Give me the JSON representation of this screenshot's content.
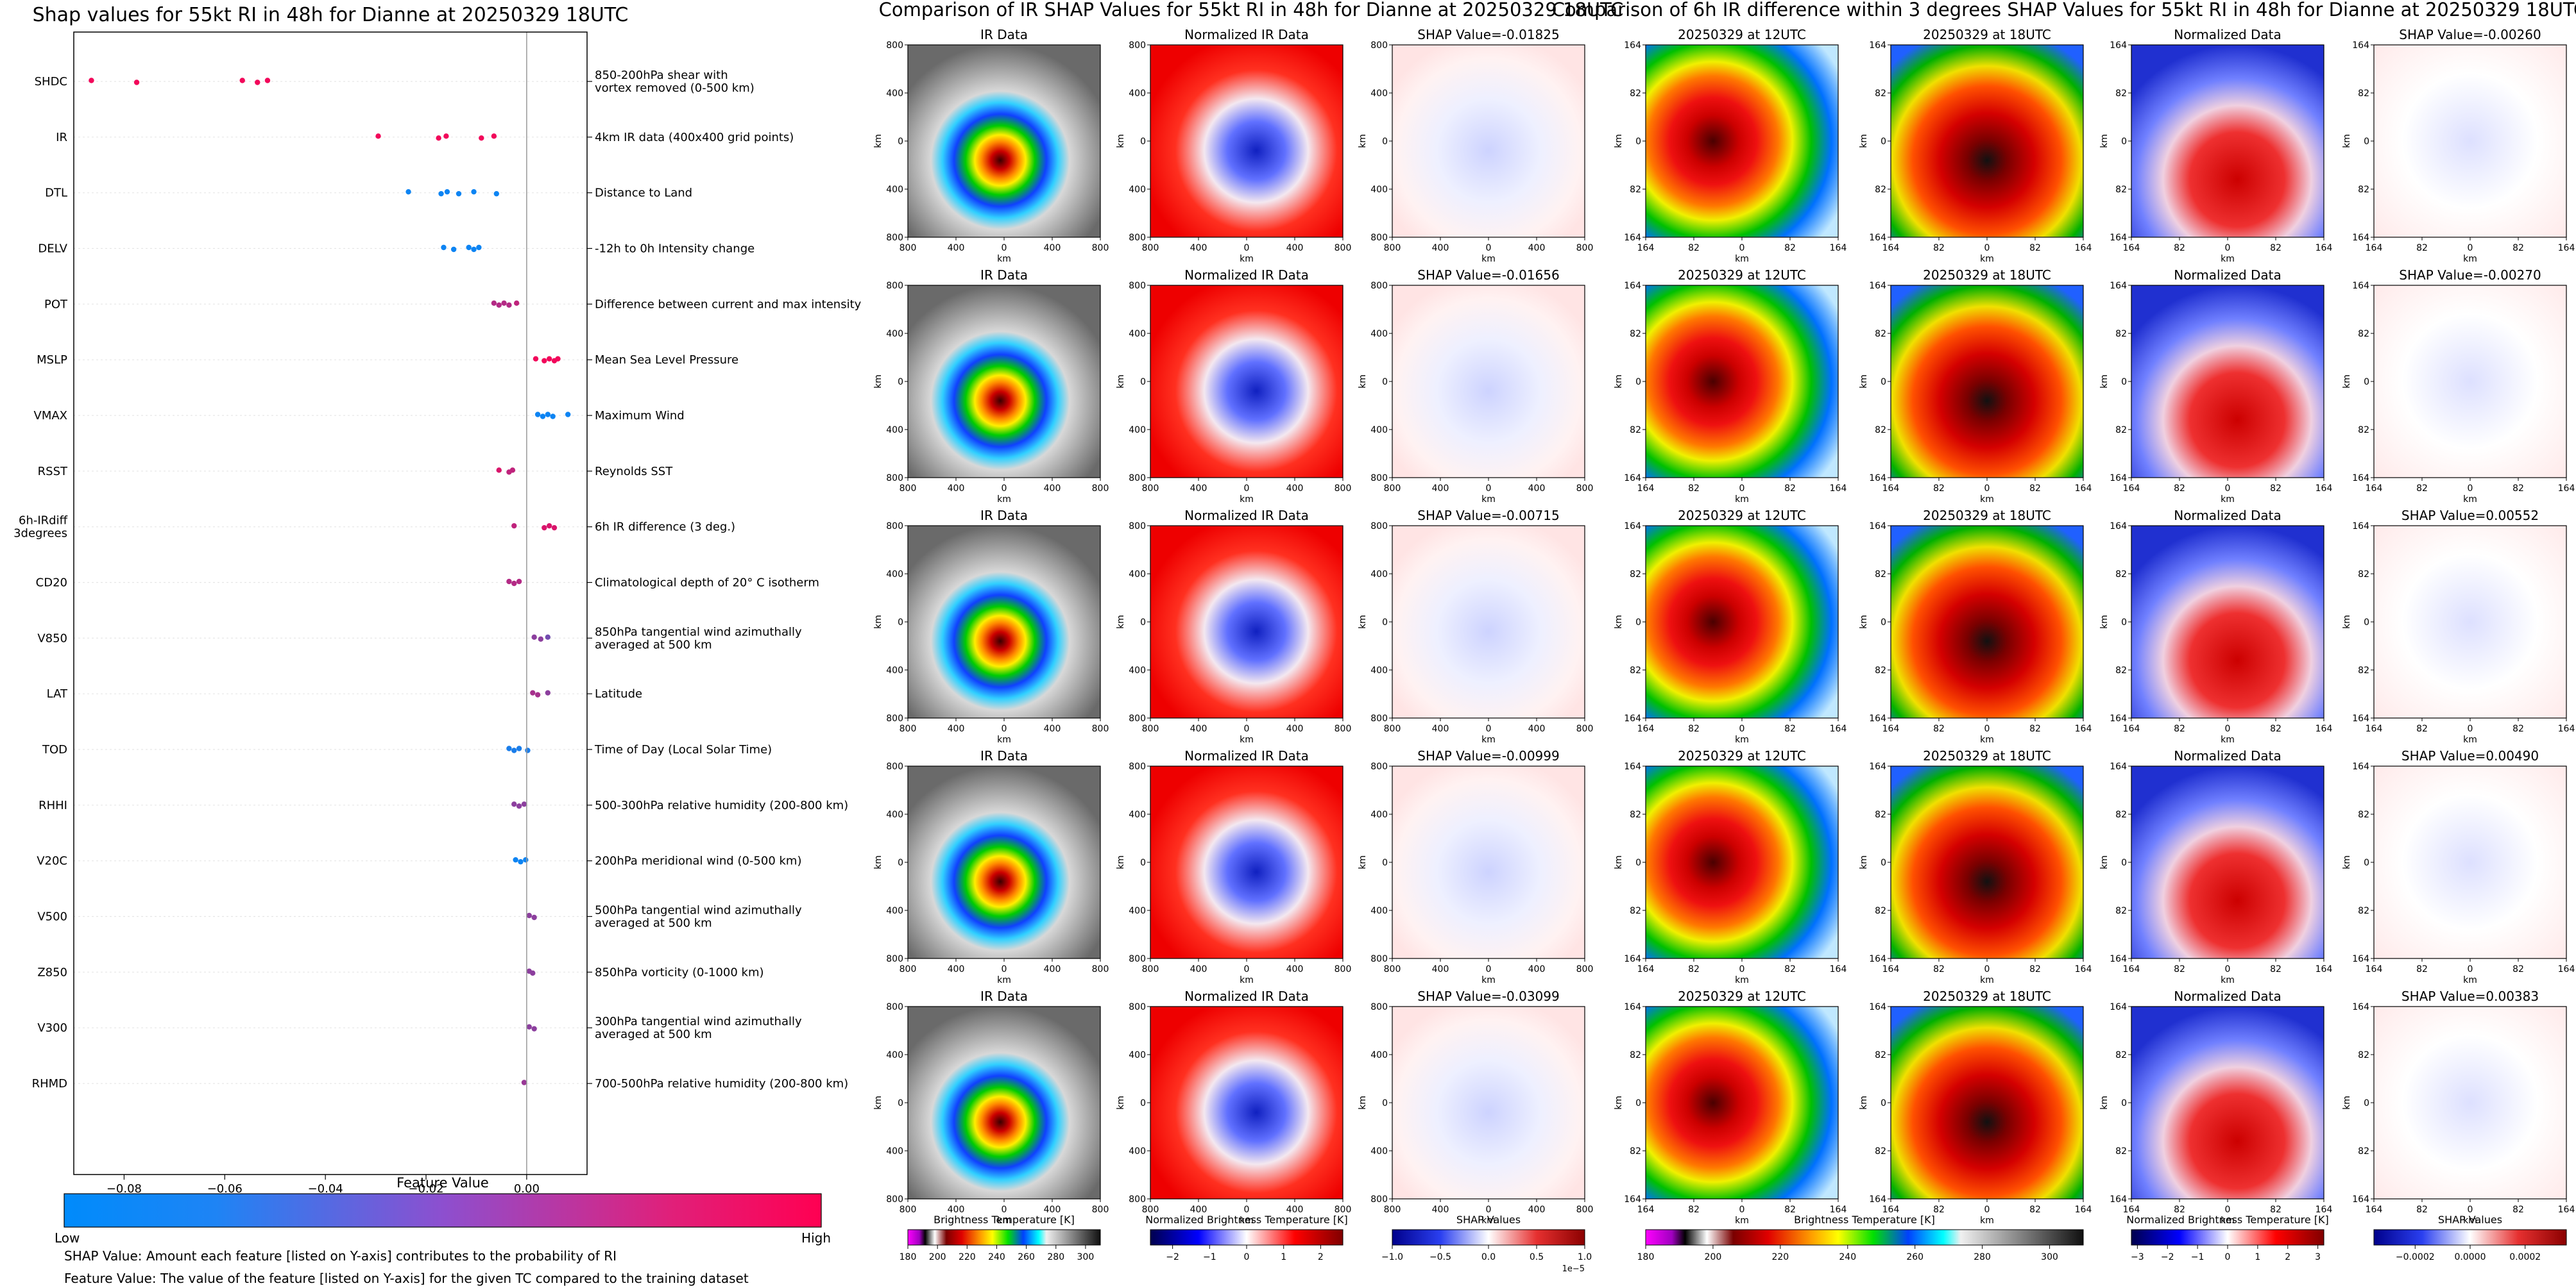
{
  "chart_data": [
    {
      "type": "scatter",
      "title": "Shap values for 55kt RI in 48h for Dianne at 20250329 18UTC",
      "xlabel": "SHAP Value",
      "xlim": [
        -0.09,
        0.012
      ],
      "x_ticks": [
        -0.08,
        -0.06,
        -0.04,
        -0.02,
        0.0
      ],
      "x_tick_labels": [
        "−0.08",
        "−0.06",
        "−0.04",
        "−0.02",
        "0.00"
      ],
      "features": [
        {
          "label": "SHDC",
          "description": [
            "850-200hPa shear with",
            "vortex removed (0-500 km)"
          ],
          "points": [
            [
              -0.0865,
              0.95
            ],
            [
              -0.0775,
              0.95
            ],
            [
              -0.0565,
              0.95
            ],
            [
              -0.0535,
              0.95
            ],
            [
              -0.0515,
              0.95
            ]
          ]
        },
        {
          "label": "IR",
          "description": [
            "4km IR data (400x400 grid points)"
          ],
          "points": [
            [
              -0.0295,
              0.95
            ],
            [
              -0.0175,
              0.95
            ],
            [
              -0.016,
              0.95
            ],
            [
              -0.009,
              0.95
            ],
            [
              -0.0065,
              0.95
            ]
          ]
        },
        {
          "label": "DTL",
          "description": [
            "Distance to Land"
          ],
          "points": [
            [
              -0.0235,
              0.05
            ],
            [
              -0.017,
              0.05
            ],
            [
              -0.0158,
              0.05
            ],
            [
              -0.0135,
              0.05
            ],
            [
              -0.0105,
              0.05
            ],
            [
              -0.006,
              0.05
            ]
          ]
        },
        {
          "label": "DELV",
          "description": [
            "-12h to 0h Intensity change"
          ],
          "points": [
            [
              -0.0165,
              0.05
            ],
            [
              -0.0145,
              0.05
            ],
            [
              -0.0115,
              0.05
            ],
            [
              -0.0105,
              0.05
            ],
            [
              -0.0095,
              0.05
            ]
          ]
        },
        {
          "label": "POT",
          "description": [
            "Difference between current and max intensity"
          ],
          "points": [
            [
              -0.0065,
              0.7
            ],
            [
              -0.0055,
              0.7
            ],
            [
              -0.0045,
              0.7
            ],
            [
              -0.0035,
              0.7
            ],
            [
              -0.002,
              0.75
            ]
          ]
        },
        {
          "label": "MSLP",
          "description": [
            "Mean Sea Level Pressure"
          ],
          "points": [
            [
              0.0018,
              0.95
            ],
            [
              0.0035,
              0.95
            ],
            [
              0.0045,
              0.95
            ],
            [
              0.0055,
              0.95
            ],
            [
              0.0062,
              0.95
            ]
          ]
        },
        {
          "label": "VMAX",
          "description": [
            "Maximum Wind"
          ],
          "points": [
            [
              0.0022,
              0.05
            ],
            [
              0.0032,
              0.05
            ],
            [
              0.0042,
              0.05
            ],
            [
              0.0052,
              0.05
            ],
            [
              0.0082,
              0.05
            ]
          ]
        },
        {
          "label": "RSST",
          "description": [
            "Reynolds SST"
          ],
          "points": [
            [
              -0.0055,
              0.85
            ],
            [
              -0.0035,
              0.75
            ],
            [
              -0.0028,
              0.75
            ]
          ]
        },
        {
          "label": "6h-IRdiff 3degrees",
          "description": [
            "6h IR difference (3 deg.)"
          ],
          "points": [
            [
              -0.0025,
              0.75
            ],
            [
              0.0035,
              0.85
            ],
            [
              0.0045,
              0.85
            ],
            [
              0.0055,
              0.85
            ]
          ]
        },
        {
          "label": "CD20",
          "description": [
            "Climatological depth of 20° C isotherm"
          ],
          "points": [
            [
              -0.0035,
              0.7
            ],
            [
              -0.0025,
              0.7
            ],
            [
              -0.0015,
              0.7
            ]
          ]
        },
        {
          "label": "V850",
          "description": [
            "850hPa tangential wind azimuthally",
            "averaged at 500 km"
          ],
          "points": [
            [
              0.0015,
              0.55
            ],
            [
              0.0028,
              0.55
            ],
            [
              0.0042,
              0.45
            ]
          ]
        },
        {
          "label": "LAT",
          "description": [
            "Latitude"
          ],
          "points": [
            [
              0.0012,
              0.65
            ],
            [
              0.0022,
              0.65
            ],
            [
              0.0042,
              0.55
            ]
          ]
        },
        {
          "label": "TOD",
          "description": [
            "Time of Day (Local Solar Time)"
          ],
          "points": [
            [
              -0.0035,
              0.1
            ],
            [
              -0.0025,
              0.1
            ],
            [
              -0.0015,
              0.1
            ],
            [
              0.0002,
              0.1
            ]
          ]
        },
        {
          "label": "RHHI",
          "description": [
            "500-300hPa relative humidity (200-800 km)"
          ],
          "points": [
            [
              -0.0025,
              0.55
            ],
            [
              -0.0015,
              0.55
            ],
            [
              -0.0005,
              0.55
            ]
          ]
        },
        {
          "label": "V20C",
          "description": [
            "200hPa meridional wind (0-500 km)"
          ],
          "points": [
            [
              -0.0022,
              0.05
            ],
            [
              -0.0012,
              0.05
            ],
            [
              -0.0002,
              0.05
            ]
          ]
        },
        {
          "label": "V500",
          "description": [
            "500hPa tangential wind azimuthally",
            "averaged at 500 km"
          ],
          "points": [
            [
              0.0005,
              0.55
            ],
            [
              0.0015,
              0.55
            ]
          ]
        },
        {
          "label": "Z850",
          "description": [
            "850hPa vorticity (0-1000 km)"
          ],
          "points": [
            [
              0.0005,
              0.55
            ],
            [
              0.0012,
              0.55
            ]
          ]
        },
        {
          "label": "V300",
          "description": [
            "300hPa tangential wind azimuthally",
            "averaged at 500 km"
          ],
          "points": [
            [
              0.0005,
              0.55
            ],
            [
              0.0015,
              0.55
            ]
          ]
        },
        {
          "label": "RHMD",
          "description": [
            "700-500hPa relative humidity (200-800 km)"
          ],
          "points": [
            [
              -0.0005,
              0.6
            ]
          ]
        }
      ],
      "colorbar": {
        "title": "Feature Value",
        "low_label": "Low",
        "high_label": "High",
        "low_color": "#008bfb",
        "high_color": "#ff0052"
      },
      "notes": [
        "SHAP Value: Amount each feature [listed on Y-axis] contributes to the probability of RI",
        "Feature Value: The value of the feature [listed on Y-axis] for the given TC compared to the training dataset"
      ]
    },
    {
      "type": "heatmap",
      "title": "Comparison of IR SHAP Values for 55kt RI in 48h for Dianne at 20250329 18UTC",
      "columns": [
        "IR Data",
        "Normalized IR Data",
        "SHAP Value"
      ],
      "shap_values": [
        "-0.01825",
        "-0.01656",
        "-0.00715",
        "-0.00999",
        "-0.03099"
      ],
      "axis_label": "km",
      "x_tick_labels": [
        "800",
        "400",
        "0",
        "400",
        "800"
      ],
      "y_tick_labels": [
        "800",
        "400",
        "0",
        "400",
        "800"
      ],
      "colorbars": [
        {
          "label": "Brightness Temperature [K]",
          "ticks": [
            "180",
            "200",
            "220",
            "240",
            "260",
            "280",
            "300"
          ],
          "vmin": 180,
          "vmax": 310
        },
        {
          "label": "Normalized Brightness Temperature [K]",
          "ticks": [
            "−2",
            "−1",
            "0",
            "1",
            "2"
          ],
          "vmin": -2.6,
          "vmax": 2.6
        },
        {
          "label": "SHAP Values",
          "ticks": [
            "−1.0",
            "−0.5",
            "0.0",
            "0.5",
            "1.0"
          ],
          "vmin": -1,
          "vmax": 1,
          "exponent": "1e−5"
        }
      ]
    },
    {
      "type": "heatmap",
      "title": "Comparison of 6h IR difference within 3 degrees SHAP Values for 55kt RI in 48h for Dianne at 20250329 18UTC",
      "columns": [
        "20250329 at 12UTC",
        "20250329 at 18UTC",
        "Normalized Data",
        "SHAP Value"
      ],
      "shap_values": [
        "-0.00260",
        "-0.00270",
        "0.00552",
        "0.00490",
        "0.00383"
      ],
      "axis_label": "km",
      "x_tick_labels": [
        "164",
        "82",
        "0",
        "82",
        "164"
      ],
      "y_tick_labels": [
        "164",
        "82",
        "0",
        "82",
        "164"
      ],
      "colorbars": [
        {
          "label": "Brightness Temperature [K]",
          "ticks": [
            "180",
            "200",
            "220",
            "240",
            "260",
            "280",
            "300"
          ],
          "vmin": 180,
          "vmax": 310
        },
        {
          "label": "Normalized Brightness Temperature [K]",
          "ticks": [
            "−3",
            "−2",
            "−1",
            "0",
            "1",
            "2",
            "3"
          ],
          "vmin": -3.2,
          "vmax": 3.2
        },
        {
          "label": "SHAP Values",
          "ticks": [
            "−0.0002",
            "0.0000",
            "0.0002"
          ],
          "vmin": -0.00035,
          "vmax": 0.00035
        }
      ]
    }
  ]
}
